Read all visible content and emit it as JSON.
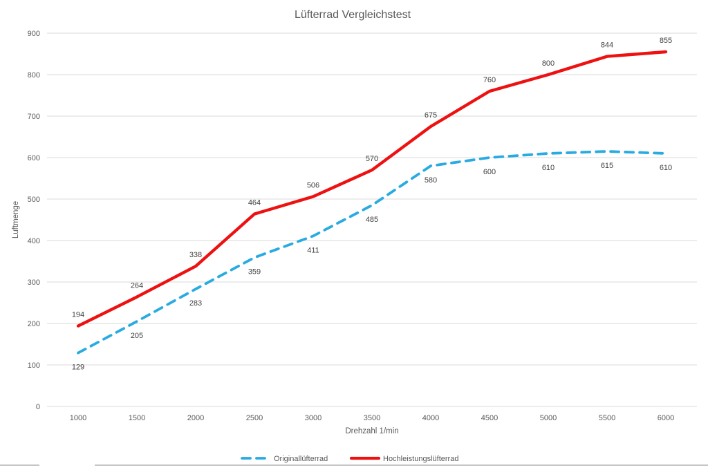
{
  "chart_data": {
    "type": "line",
    "title": "Lüfterrad Vergleichstest",
    "xlabel": "Drehzahl 1/min",
    "ylabel": "Luftmenge",
    "x": [
      1000,
      1500,
      2000,
      2500,
      3000,
      3500,
      4000,
      4500,
      5000,
      5500,
      6000
    ],
    "yticks": [
      0,
      100,
      200,
      300,
      400,
      500,
      600,
      700,
      800,
      900
    ],
    "ylim": [
      0,
      900
    ],
    "grid": true,
    "legend_position": "bottom",
    "series": [
      {
        "name": "Originallüfterrad",
        "color": "#29ABE2",
        "line_style": "dashed",
        "label_position": "below",
        "values": [
          129,
          205,
          283,
          359,
          411,
          485,
          580,
          600,
          610,
          615,
          610
        ]
      },
      {
        "name": "Hochleistungslüfterrad",
        "color": "#ED1111",
        "line_style": "solid",
        "label_position": "above",
        "values": [
          194,
          264,
          338,
          464,
          506,
          570,
          675,
          760,
          800,
          844,
          855
        ]
      }
    ],
    "colors": {
      "grid": "#D9D9D9",
      "tick_text": "#595959",
      "title_text": "#595959",
      "data_label_text": "#404040"
    }
  }
}
